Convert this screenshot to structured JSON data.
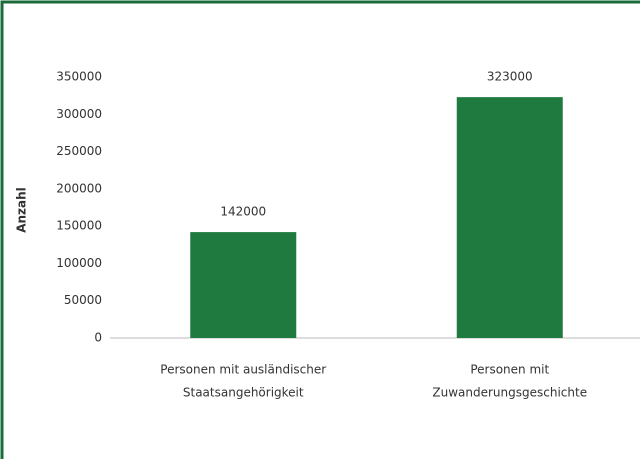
{
  "chart_data": {
    "type": "bar",
    "y_label": "Anzahl",
    "categories": [
      [
        "Personen mit ausländischer",
        "Staatsangehörigkeit"
      ],
      [
        "Personen mit",
        "Zuwanderungsgeschichte"
      ]
    ],
    "values": [
      142000,
      323000
    ],
    "color": "#1e7a3e",
    "ylim": [
      0,
      350000
    ],
    "yticks": [
      0,
      50000,
      100000,
      150000,
      200000,
      250000,
      300000,
      350000
    ],
    "grid": false
  }
}
